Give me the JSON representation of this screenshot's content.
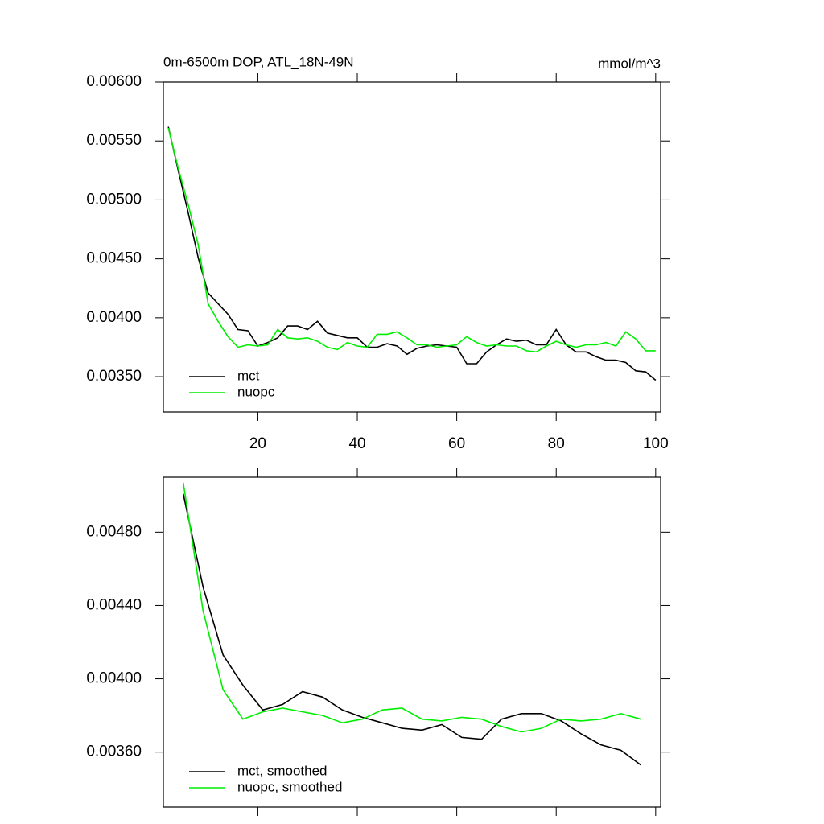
{
  "chart_data": [
    {
      "type": "line",
      "title": "0m-6500m DOP, ATL_18N-49N",
      "units": "mmol/m^3",
      "x": [
        2,
        4,
        6,
        8,
        10,
        12,
        14,
        16,
        18,
        20,
        22,
        24,
        26,
        28,
        30,
        32,
        34,
        36,
        38,
        40,
        42,
        44,
        46,
        48,
        50,
        52,
        54,
        56,
        58,
        60,
        62,
        64,
        66,
        68,
        70,
        72,
        74,
        76,
        78,
        80,
        82,
        84,
        86,
        88,
        90,
        92,
        94,
        96,
        98,
        100
      ],
      "series": [
        {
          "name": "mct",
          "color": "#000000",
          "values": [
            0.00562,
            0.00525,
            0.00489,
            0.00451,
            0.00421,
            0.00412,
            0.00403,
            0.0039,
            0.00389,
            0.00376,
            0.00379,
            0.00383,
            0.00393,
            0.00393,
            0.0039,
            0.00397,
            0.00387,
            0.00385,
            0.00383,
            0.00383,
            0.00375,
            0.00375,
            0.00378,
            0.00376,
            0.00369,
            0.00374,
            0.00376,
            0.00377,
            0.00376,
            0.00375,
            0.00361,
            0.00361,
            0.00371,
            0.00377,
            0.00382,
            0.0038,
            0.00381,
            0.00377,
            0.00377,
            0.0039,
            0.00377,
            0.00371,
            0.00371,
            0.00367,
            0.00364,
            0.00364,
            0.00362,
            0.00355,
            0.00354,
            0.00347
          ]
        },
        {
          "name": "nuopc",
          "color": "#00ee00",
          "values": [
            0.00561,
            0.00527,
            0.00496,
            0.00462,
            0.00412,
            0.00397,
            0.00384,
            0.00375,
            0.00377,
            0.00376,
            0.00377,
            0.0039,
            0.00383,
            0.00382,
            0.00383,
            0.0038,
            0.00375,
            0.00373,
            0.00379,
            0.00376,
            0.00375,
            0.00386,
            0.00386,
            0.00388,
            0.00383,
            0.00377,
            0.00377,
            0.00375,
            0.00376,
            0.00377,
            0.00384,
            0.00379,
            0.00376,
            0.00377,
            0.00376,
            0.00376,
            0.00372,
            0.00371,
            0.00376,
            0.0038,
            0.00377,
            0.00375,
            0.00377,
            0.00377,
            0.00379,
            0.00376,
            0.00388,
            0.00382,
            0.00372,
            0.00372
          ]
        }
      ],
      "xlim": [
        1,
        101
      ],
      "xticks": [
        20,
        40,
        60,
        80,
        100
      ],
      "ylim": [
        0.0032,
        0.006
      ],
      "yticks": [
        {
          "value": 0.0035,
          "label": "0.00350"
        },
        {
          "value": 0.004,
          "label": "0.00400"
        },
        {
          "value": 0.0045,
          "label": "0.00450"
        },
        {
          "value": 0.005,
          "label": "0.00500"
        },
        {
          "value": 0.0055,
          "label": "0.00550"
        },
        {
          "value": 0.006,
          "label": "0.00600"
        }
      ],
      "legend": "lower left",
      "show_xtick_labels": true
    },
    {
      "type": "line",
      "x": [
        5,
        9,
        13,
        17,
        21,
        25,
        29,
        33,
        37,
        41,
        45,
        49,
        53,
        57,
        61,
        65,
        69,
        73,
        77,
        81,
        85,
        89,
        93,
        97
      ],
      "series": [
        {
          "name": "mct, smoothed",
          "color": "#000000",
          "values": [
            0.00501,
            0.0045,
            0.00413,
            0.003965,
            0.00383,
            0.00386,
            0.00393,
            0.0039,
            0.00383,
            0.00379,
            0.00376,
            0.00373,
            0.00372,
            0.00375,
            0.00368,
            0.00367,
            0.00378,
            0.00381,
            0.00381,
            0.00377,
            0.0037,
            0.00364,
            0.00361,
            0.00353
          ]
        },
        {
          "name": "nuopc, smoothed",
          "color": "#00ee00",
          "values": [
            0.00507,
            0.00437,
            0.00394,
            0.00378,
            0.00382,
            0.00384,
            0.00382,
            0.0038,
            0.00376,
            0.00378,
            0.00383,
            0.00384,
            0.00378,
            0.00377,
            0.00379,
            0.00378,
            0.00374,
            0.00371,
            0.00373,
            0.00378,
            0.00377,
            0.00378,
            0.00381,
            0.00378
          ]
        }
      ],
      "xlim": [
        1,
        101
      ],
      "xticks": [
        20,
        40,
        60,
        80,
        100
      ],
      "ylim": [
        0.0033,
        0.0051
      ],
      "yticks": [
        {
          "value": 0.0036,
          "label": "0.00360"
        },
        {
          "value": 0.004,
          "label": "0.00400"
        },
        {
          "value": 0.0044,
          "label": "0.00440"
        },
        {
          "value": 0.0048,
          "label": "0.00480"
        }
      ],
      "legend": "lower left",
      "show_xtick_labels": false
    }
  ]
}
